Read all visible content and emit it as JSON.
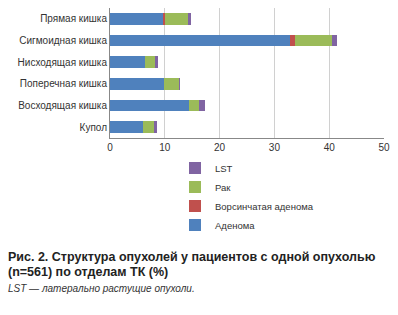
{
  "chart_data": {
    "type": "bar",
    "orientation": "horizontal",
    "stacked": true,
    "title": "Рис. 2. Структура опухолей у пациентов с одной опухолью (n=561) по отделам ТК (%)",
    "subtitle": "LST — латерально растущие опухоли.",
    "categories": [
      "Прямая кишка",
      "Сигмоидная кишка",
      "Нисходящая кишка",
      "Поперечная кишка",
      "Восходящая кишка",
      "Купол"
    ],
    "series": [
      {
        "name": "Аденома",
        "color": "#4f81bd",
        "values": [
          9.6,
          32.8,
          6.4,
          9.8,
          14.4,
          6.1
        ]
      },
      {
        "name": "Ворсинчатая аденома",
        "color": "#c0504d",
        "values": [
          0.5,
          0.9,
          0,
          0,
          0,
          0
        ]
      },
      {
        "name": "Рак",
        "color": "#9bbb59",
        "values": [
          4.1,
          6.9,
          1.9,
          2.7,
          1.8,
          2.0
        ]
      },
      {
        "name": "LST",
        "color": "#8064a2",
        "values": [
          0.5,
          0.8,
          0.4,
          0.3,
          1.1,
          0.4
        ]
      }
    ],
    "xlim": [
      0,
      50
    ],
    "xticks": [
      0,
      10,
      20,
      30,
      40,
      50
    ],
    "grid": true,
    "legend": "bottom"
  }
}
